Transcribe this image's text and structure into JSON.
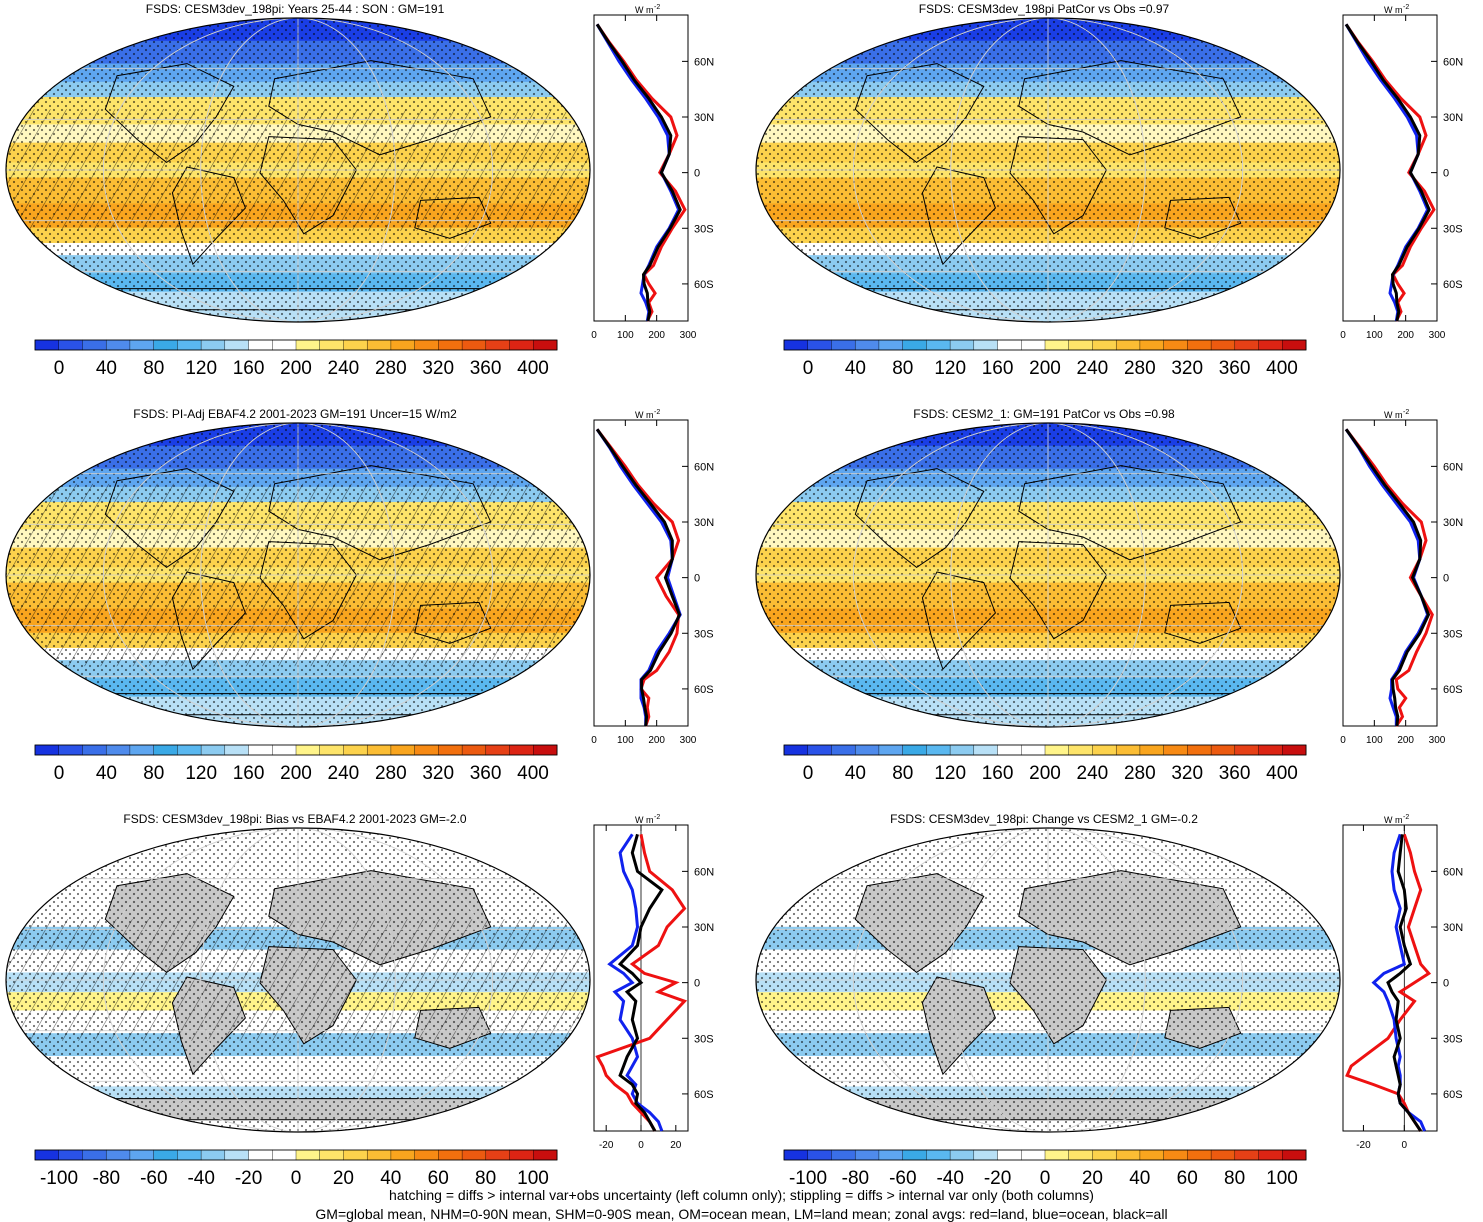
{
  "panels": [
    {
      "title": "FSDS: CESM3dev_198pi: Years 25-44 : SON : GM=191",
      "colorbar": "abs",
      "profile": "abs",
      "column": "left",
      "row": 0
    },
    {
      "title": "FSDS: CESM3dev_198pi PatCor vs Obs =0.97",
      "colorbar": "abs",
      "profile": "abs",
      "column": "right",
      "row": 0
    },
    {
      "title": "FSDS: PI-Adj EBAF4.2 2001-2023 GM=191 Uncer=15 W/m2",
      "colorbar": "abs",
      "profile": "abs",
      "column": "left",
      "row": 1
    },
    {
      "title": "FSDS: CESM2_1: GM=191 PatCor vs Obs =0.98",
      "colorbar": "abs",
      "profile": "abs",
      "column": "right",
      "row": 1
    },
    {
      "title": "FSDS: CESM3dev_198pi: Bias vs EBAF4.2 2001-2023  GM=-2.0",
      "colorbar": "diff",
      "profile": "diffL",
      "column": "left",
      "row": 2
    },
    {
      "title": "FSDS: CESM3dev_198pi: Change vs CESM2_1 GM=-0.2",
      "colorbar": "diff",
      "profile": "diffR",
      "column": "right",
      "row": 2
    }
  ],
  "colorbars": {
    "abs": {
      "labels": [
        "0",
        "40",
        "80",
        "120",
        "160",
        "200",
        "240",
        "280",
        "320",
        "360",
        "400"
      ],
      "colors": [
        "#1632e0",
        "#2a52e8",
        "#3a6fe8",
        "#4f8bec",
        "#5ea6f0",
        "#3aa9e6",
        "#5ab8f0",
        "#8ccbf0",
        "#b8e0f6",
        "#ffffff",
        "#ffffff",
        "#fff48a",
        "#fde46a",
        "#fcd24c",
        "#fbbd34",
        "#f9a51e",
        "#f78a14",
        "#f2700e",
        "#ec5a10",
        "#e64016",
        "#dc2414",
        "#c80e0e"
      ]
    },
    "diff": {
      "labels": [
        "-100",
        "-80",
        "-60",
        "-40",
        "-20",
        "0",
        "20",
        "40",
        "60",
        "80",
        "100"
      ],
      "colors": [
        "#1632e0",
        "#2a52e8",
        "#3a6fe8",
        "#4f8bec",
        "#5ea6f0",
        "#3aa9e6",
        "#5ab8f0",
        "#8ccbf0",
        "#b8e0f6",
        "#ffffff",
        "#ffffff",
        "#fff48a",
        "#fde46a",
        "#fcd24c",
        "#fbbd34",
        "#f9a51e",
        "#f78a14",
        "#f2700e",
        "#ec5a10",
        "#e64016",
        "#dc2414",
        "#c80e0e"
      ]
    }
  },
  "profile_axes": {
    "abs": {
      "unit_label": "W m",
      "unit_exp": "-2",
      "xticks": [
        "0",
        "100",
        "200",
        "300"
      ],
      "xlim": [
        0,
        300
      ]
    },
    "diffL": {
      "unit_label": "W m",
      "unit_exp": "-2",
      "xticks": [
        "-20",
        "0",
        "20"
      ],
      "xlim": [
        -27,
        27
      ]
    },
    "diffR": {
      "unit_label": "W m",
      "unit_exp": "-2",
      "xticks": [
        "-20",
        "0"
      ],
      "xlim": [
        -30,
        16
      ]
    },
    "yticks": [
      "60N",
      "30N",
      "0",
      "30S",
      "60S"
    ],
    "ytick_values": [
      60,
      30,
      0,
      -30,
      -60
    ]
  },
  "map_colors": {
    "land_gray": "#c8c8c8",
    "outline": "#000000"
  },
  "footnotes": [
    "hatching = diffs > internal var+obs uncertainty (left column only); stippling = diffs > internal var only (both columns)",
    "GM=global mean, NHM=0-90N mean, SHM=0-90S mean, OM=ocean mean, LM=land mean; zonal avgs: red=land, blue=ocean, black=all"
  ],
  "chart_data": [
    {
      "type": "line",
      "title": "FSDS: CESM3dev_198pi: Years 25-44 : SON : GM=191",
      "xlabel": "W m-2",
      "y": [
        80,
        70,
        60,
        50,
        40,
        30,
        20,
        10,
        0,
        -10,
        -20,
        -30,
        -40,
        -50,
        -55,
        -60,
        -65,
        -70,
        -75,
        -80
      ],
      "series": [
        {
          "name": "red=land",
          "x": [
            10,
            50,
            95,
            135,
            185,
            245,
            265,
            240,
            210,
            260,
            290,
            250,
            215,
            190,
            160,
            175,
            195,
            175,
            185,
            170
          ]
        },
        {
          "name": "blue=ocean",
          "x": [
            10,
            45,
            80,
            120,
            165,
            205,
            235,
            240,
            215,
            245,
            270,
            240,
            200,
            175,
            160,
            155,
            150,
            165,
            175,
            170
          ]
        },
        {
          "name": "black=all",
          "x": [
            10,
            48,
            90,
            128,
            175,
            215,
            245,
            240,
            215,
            250,
            275,
            243,
            205,
            178,
            158,
            160,
            170,
            172,
            178,
            172
          ]
        }
      ]
    },
    {
      "type": "line",
      "title": "FSDS: CESM3dev_198pi PatCor vs Obs =0.97",
      "xlabel": "W m-2",
      "y": [
        80,
        70,
        60,
        50,
        40,
        30,
        20,
        10,
        0,
        -10,
        -20,
        -30,
        -40,
        -50,
        -55,
        -60,
        -65,
        -70,
        -75,
        -80
      ],
      "series": [
        {
          "name": "red=land",
          "x": [
            10,
            50,
            95,
            135,
            185,
            245,
            265,
            240,
            210,
            260,
            290,
            250,
            215,
            190,
            160,
            175,
            195,
            175,
            185,
            170
          ]
        },
        {
          "name": "blue=ocean",
          "x": [
            10,
            45,
            80,
            120,
            165,
            205,
            235,
            240,
            215,
            245,
            270,
            240,
            200,
            175,
            160,
            155,
            150,
            165,
            175,
            170
          ]
        },
        {
          "name": "black=all",
          "x": [
            10,
            48,
            90,
            128,
            175,
            215,
            245,
            240,
            215,
            250,
            275,
            243,
            205,
            178,
            158,
            160,
            170,
            172,
            178,
            172
          ]
        }
      ]
    },
    {
      "type": "line",
      "title": "FSDS: PI-Adj EBAF4.2 2001-2023 GM=191 Uncer=15 W/m2",
      "xlabel": "W m-2",
      "y": [
        80,
        70,
        60,
        50,
        40,
        30,
        20,
        10,
        0,
        -10,
        -20,
        -30,
        -40,
        -50,
        -55,
        -60,
        -65,
        -70,
        -75,
        -80
      ],
      "series": [
        {
          "name": "red=land",
          "x": [
            10,
            55,
            100,
            140,
            190,
            250,
            270,
            250,
            200,
            230,
            270,
            265,
            240,
            200,
            160,
            150,
            175,
            170,
            175,
            165
          ]
        },
        {
          "name": "blue=ocean",
          "x": [
            10,
            50,
            85,
            125,
            170,
            215,
            245,
            250,
            235,
            255,
            275,
            240,
            200,
            175,
            150,
            150,
            150,
            160,
            165,
            165
          ]
        },
        {
          "name": "black=all",
          "x": [
            10,
            52,
            92,
            133,
            180,
            225,
            250,
            250,
            228,
            250,
            273,
            246,
            208,
            180,
            152,
            152,
            158,
            162,
            168,
            165
          ]
        }
      ]
    },
    {
      "type": "line",
      "title": "FSDS: CESM2_1: GM=191 PatCor vs Obs =0.98",
      "xlabel": "W m-2",
      "y": [
        80,
        70,
        60,
        50,
        40,
        30,
        20,
        10,
        0,
        -10,
        -20,
        -30,
        -40,
        -50,
        -55,
        -60,
        -65,
        -70,
        -75,
        -80
      ],
      "series": [
        {
          "name": "red=land",
          "x": [
            10,
            55,
            100,
            140,
            190,
            250,
            265,
            245,
            215,
            250,
            285,
            265,
            235,
            210,
            170,
            175,
            200,
            180,
            190,
            170
          ]
        },
        {
          "name": "blue=ocean",
          "x": [
            10,
            50,
            85,
            125,
            170,
            215,
            240,
            245,
            225,
            250,
            270,
            240,
            200,
            175,
            155,
            155,
            150,
            160,
            170,
            170
          ]
        },
        {
          "name": "black=all",
          "x": [
            10,
            52,
            92,
            133,
            180,
            225,
            248,
            245,
            222,
            250,
            273,
            245,
            205,
            180,
            158,
            160,
            165,
            168,
            175,
            172
          ]
        }
      ]
    },
    {
      "type": "line",
      "title": "FSDS: CESM3dev_198pi: Bias vs EBAF4.2 2001-2023  GM=-2.0",
      "xlabel": "W m-2",
      "y": [
        80,
        70,
        60,
        50,
        40,
        30,
        20,
        10,
        5,
        0,
        -5,
        -10,
        -20,
        -30,
        -40,
        -45,
        -50,
        -55,
        -60,
        -65,
        -70,
        -75,
        -80
      ],
      "series": [
        {
          "name": "red=land",
          "x": [
            0,
            2,
            5,
            18,
            25,
            15,
            10,
            -5,
            2,
            20,
            10,
            25,
            15,
            5,
            -25,
            -22,
            -20,
            -15,
            -8,
            -5,
            0,
            5,
            8
          ]
        },
        {
          "name": "blue=ocean",
          "x": [
            -5,
            -12,
            -10,
            -5,
            -3,
            -2,
            -5,
            -18,
            -10,
            -5,
            -15,
            -10,
            -12,
            -5,
            -2,
            -5,
            -8,
            -3,
            -5,
            -2,
            5,
            10,
            12
          ]
        },
        {
          "name": "black=all",
          "x": [
            -2,
            -5,
            -2,
            12,
            5,
            0,
            -2,
            -12,
            -5,
            0,
            -8,
            -3,
            -5,
            -2,
            -8,
            -10,
            -12,
            -5,
            -2,
            -3,
            2,
            5,
            8
          ]
        }
      ]
    },
    {
      "type": "line",
      "title": "FSDS: CESM3dev_198pi: Change vs CESM2_1 GM=-0.2",
      "xlabel": "W m-2",
      "y": [
        80,
        70,
        60,
        50,
        40,
        30,
        20,
        10,
        5,
        0,
        -5,
        -10,
        -20,
        -30,
        -40,
        -45,
        -50,
        -55,
        -60,
        -65,
        -70,
        -75,
        -80
      ],
      "series": [
        {
          "name": "red=land",
          "x": [
            0,
            3,
            5,
            8,
            5,
            2,
            5,
            8,
            12,
            5,
            -2,
            5,
            -2,
            -8,
            -20,
            -26,
            -28,
            -15,
            -3,
            0,
            2,
            5,
            8
          ]
        },
        {
          "name": "blue=ocean",
          "x": [
            -2,
            -5,
            -6,
            -5,
            -2,
            -4,
            -2,
            0,
            -10,
            -15,
            -10,
            -8,
            -5,
            -4,
            -2,
            -3,
            -2,
            -2,
            -3,
            -2,
            2,
            8,
            10
          ]
        },
        {
          "name": "black=all",
          "x": [
            -1,
            -2,
            -3,
            0,
            1,
            -2,
            0,
            3,
            -2,
            -8,
            -6,
            -3,
            -4,
            -2,
            -5,
            -4,
            -3,
            -2,
            -3,
            -2,
            2,
            5,
            8
          ]
        }
      ]
    }
  ]
}
